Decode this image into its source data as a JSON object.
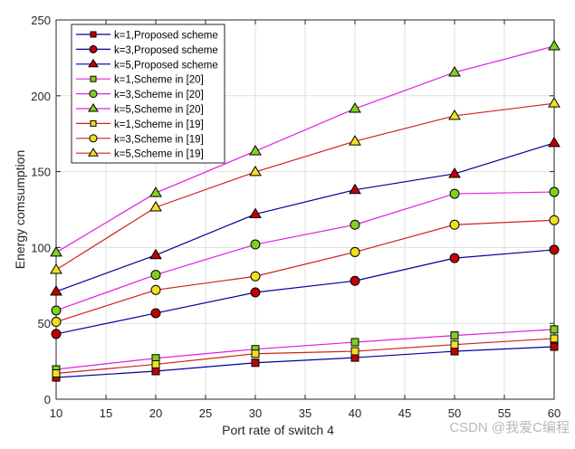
{
  "chart_data": {
    "type": "line",
    "title": "",
    "xlabel": "Port rate of switch 4",
    "ylabel": "Energy comsumption",
    "xlim": [
      10,
      60
    ],
    "ylim": [
      0,
      250
    ],
    "xticks": [
      10,
      15,
      20,
      25,
      30,
      35,
      40,
      45,
      50,
      55,
      60
    ],
    "yticks": [
      0,
      50,
      100,
      150,
      200,
      250
    ],
    "grid": true,
    "legend_position": "top-left",
    "x": [
      10,
      20,
      30,
      40,
      50,
      60
    ],
    "series": [
      {
        "name": "k=1,Proposed scheme",
        "line": "#0000a0",
        "marker": "square",
        "fill": "#c00000",
        "values": [
          14.3,
          18.5,
          24,
          27.4,
          31.6,
          34.6
        ]
      },
      {
        "name": "k=3,Proposed scheme",
        "line": "#0000a0",
        "marker": "circle",
        "fill": "#c00000",
        "values": [
          43,
          56.7,
          70.4,
          78,
          93,
          98.5
        ]
      },
      {
        "name": "k=5,Proposed scheme",
        "line": "#0000a0",
        "marker": "triangle",
        "fill": "#c00000",
        "values": [
          71,
          95,
          122,
          138,
          148.6,
          168.9
        ]
      },
      {
        "name": "k=1,Scheme in [20]",
        "line": "#e020e0",
        "marker": "square",
        "fill": "#80d020",
        "values": [
          19.7,
          27,
          33,
          37.6,
          42,
          46
        ]
      },
      {
        "name": "k=3,Scheme in [20]",
        "line": "#e020e0",
        "marker": "circle",
        "fill": "#80d020",
        "values": [
          58.5,
          82,
          102,
          115,
          135.4,
          136.6
        ]
      },
      {
        "name": "k=5,Scheme in [20]",
        "line": "#e020e0",
        "marker": "triangle",
        "fill": "#80d020",
        "values": [
          96.7,
          136,
          163.5,
          191.5,
          215.4,
          232.7
        ]
      },
      {
        "name": "k=1,Scheme in [19]",
        "line": "#d02020",
        "marker": "square",
        "fill": "#f0e020",
        "values": [
          17,
          23,
          30,
          31.6,
          36,
          40
        ]
      },
      {
        "name": "k=3,Scheme in [19]",
        "line": "#d02020",
        "marker": "circle",
        "fill": "#f0e020",
        "values": [
          51,
          72,
          81,
          97,
          115,
          118
        ]
      },
      {
        "name": "k=5,Scheme in [19]",
        "line": "#d02020",
        "marker": "triangle",
        "fill": "#f0e020",
        "values": [
          85.3,
          126.5,
          149.8,
          170,
          186.8,
          195
        ]
      }
    ]
  },
  "watermark": "CSDN @我爱C编程"
}
